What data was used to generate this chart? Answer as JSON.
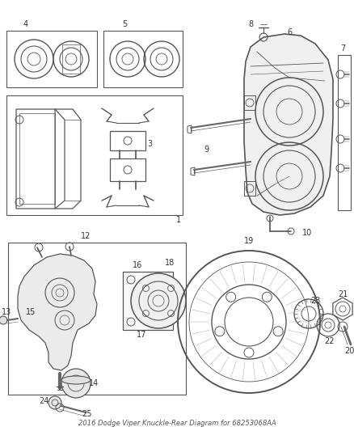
{
  "title": "2016 Dodge Viper Knuckle-Rear Diagram for 68253068AA",
  "bg_color": "#ffffff",
  "line_color": "#555555",
  "text_color": "#333333",
  "fig_width": 4.38,
  "fig_height": 5.33,
  "dpi": 100
}
